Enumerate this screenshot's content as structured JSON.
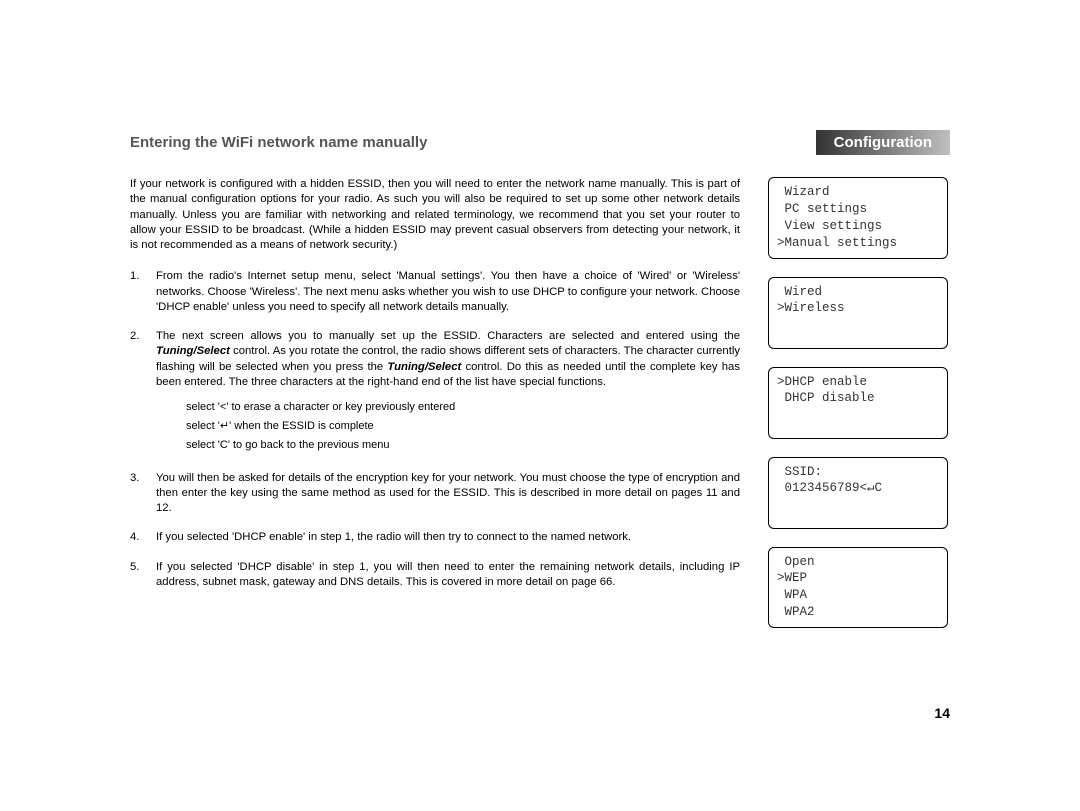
{
  "header": {
    "heading": "Entering the WiFi network name manually",
    "chip": "Configuration"
  },
  "intro": "If your network is configured with a hidden ESSID, then you will need to enter the network name manually. This is part of the manual configuration options for your radio. As such you will also be required to set up some other network details manually. Unless you are familiar with networking and related terminology, we recommend that you set your router to allow your ESSID to be broadcast. (While a hidden ESSID may prevent casual observers from detecting your network, it is not recommended as a means of network security.)",
  "steps": [
    {
      "num": "1.",
      "text": "From the radio's Internet setup menu, select 'Manual settings'. You then have a choice of 'Wired' or 'Wireless' networks. Choose 'Wireless'. The next menu asks whether you wish to use DHCP to configure your network. Choose 'DHCP enable' unless you need to specify all network details manually."
    },
    {
      "num": "2.",
      "pre": "The next screen allows you to manually set up the ESSID. Characters are selected and entered using the ",
      "ctl1": "Tuning/Select",
      "mid": " control. As you rotate the control, the radio shows different sets of characters. The character currently flashing will be selected when you press the ",
      "ctl2": "Tuning/Select",
      "post": " control. Do this as needed until the complete key has been entered. The three characters at the right-hand end of the list have special functions.",
      "sub": [
        "select '<' to erase a character or key previously entered",
        "select '↵' when the ESSID is complete",
        "select 'C' to go back to the previous menu"
      ]
    },
    {
      "num": "3.",
      "text": "You will then be asked for details of the encryption key for your network. You must choose the type of encryption and then enter the key using the same method as used for the ESSID. This is described in more detail on pages 11 and 12."
    },
    {
      "num": "4.",
      "text": "If you selected 'DHCP enable' in step 1, the radio will then try to connect to the named network."
    },
    {
      "num": "5.",
      "text": "If you selected 'DHCP disable' in step 1, you will then need to enter the remaining network details, including IP address, subnet mask, gateway and DNS details. This is covered in more detail on page 66."
    }
  ],
  "screens": [
    " Wizard\n PC settings\n View settings\n>Manual settings",
    " Wired\n>Wireless\n\n",
    ">DHCP enable\n DHCP disable\n\n",
    " SSID:\n 0123456789<↵C\n\n",
    " Open\n>WEP\n WPA\n WPA2"
  ],
  "pagenum": "14",
  "colors": {
    "text": "#000000",
    "heading": "#555555",
    "chip_bg_from": "#333333",
    "chip_bg_to": "#bfbfbf",
    "chip_text": "#ffffff",
    "box_border": "#000000",
    "screen_text": "#333333",
    "background": "#ffffff"
  },
  "fonts": {
    "body_family": "Arial",
    "body_size_pt": 8.5,
    "heading_size_pt": 11,
    "mono_family": "Courier New",
    "mono_size_pt": 9.5
  }
}
